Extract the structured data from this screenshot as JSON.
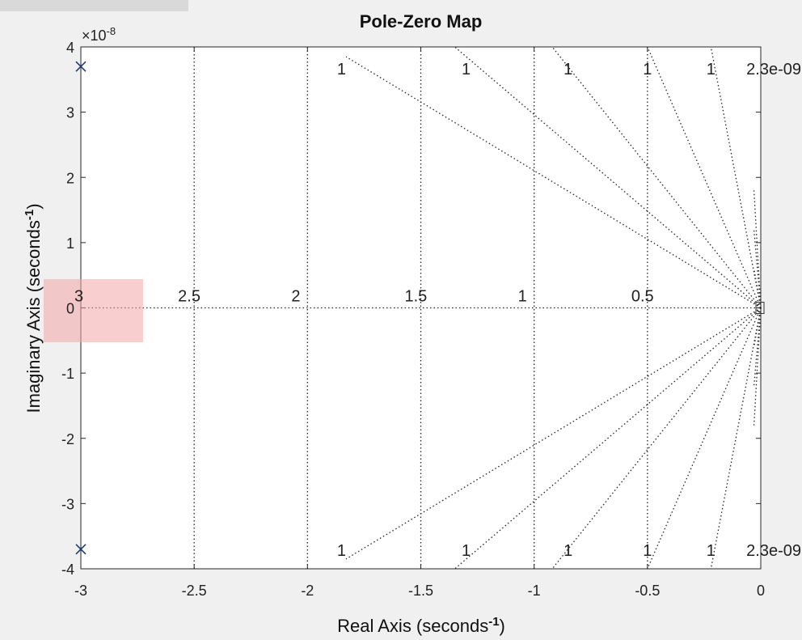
{
  "chart_data": {
    "type": "scatter",
    "title": "Pole-Zero Map",
    "xlabel": "Real Axis (seconds",
    "ylabel": "Imaginary Axis (seconds",
    "label_superscript": "-1",
    "y_exponent_prefix": "×10",
    "y_exponent": "-8",
    "xlim": [
      -3,
      0
    ],
    "ylim": [
      -4e-08,
      4e-08
    ],
    "x_ticks": [
      {
        "value": -3,
        "label": "-3"
      },
      {
        "value": -2.5,
        "label": "-2.5"
      },
      {
        "value": -2,
        "label": "-2"
      },
      {
        "value": -1.5,
        "label": "-1.5"
      },
      {
        "value": -1,
        "label": "-1"
      },
      {
        "value": -0.5,
        "label": "-0.5"
      },
      {
        "value": 0,
        "label": "0"
      }
    ],
    "y_ticks": [
      {
        "value": 4e-08,
        "label": "4"
      },
      {
        "value": 3e-08,
        "label": "3"
      },
      {
        "value": 2e-08,
        "label": "2"
      },
      {
        "value": 1e-08,
        "label": "1"
      },
      {
        "value": 0,
        "label": "0"
      },
      {
        "value": -1e-08,
        "label": "-1"
      },
      {
        "value": -2e-08,
        "label": "-2"
      },
      {
        "value": -3e-08,
        "label": "-3"
      },
      {
        "value": -4e-08,
        "label": "-4"
      }
    ],
    "poles": [
      {
        "x": -3,
        "y": 3.7e-08
      },
      {
        "x": -3,
        "y": -3.7e-08
      }
    ],
    "zeros": [],
    "grid": true,
    "frequency_grid_labels": [
      {
        "value": 3,
        "label": "3"
      },
      {
        "value": 2.5,
        "label": "2.5"
      },
      {
        "value": 2,
        "label": "2"
      },
      {
        "value": 1.5,
        "label": "1.5"
      },
      {
        "value": 1,
        "label": "1"
      },
      {
        "value": 0.5,
        "label": "0.5"
      }
    ],
    "damping_grid_labels": [
      {
        "x": -1.85,
        "label": "1"
      },
      {
        "x": -1.3,
        "label": "1"
      },
      {
        "x": -0.85,
        "label": "1"
      },
      {
        "x": -0.5,
        "label": "1"
      },
      {
        "x": -0.22,
        "label": "1"
      },
      {
        "x": 0,
        "label": "2.3e-09"
      }
    ]
  }
}
